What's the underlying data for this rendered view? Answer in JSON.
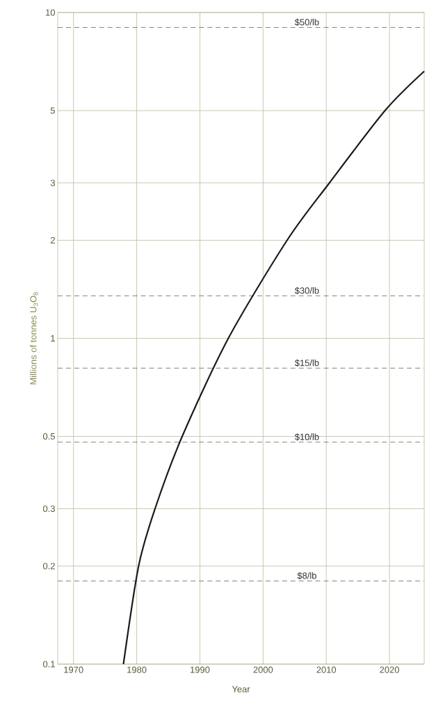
{
  "chart_data": {
    "type": "line",
    "xlabel": "Year",
    "ylabel": "Millions of tonnes U$_{3}$O$_{8}$",
    "x": [
      1977.9,
      1980.3,
      1982.9,
      1987.2,
      1994.5,
      2003.8,
      2010.5,
      2019.3,
      2025.5
    ],
    "series": [
      {
        "color": "#1a1a1a",
        "values": [
          0.1,
          0.2,
          0.3,
          0.5,
          1,
          2,
          3,
          5,
          6.6
        ]
      }
    ],
    "xlim": [
      1967.5,
      2025.5
    ],
    "ylim": [
      0.1,
      10
    ],
    "log": "y",
    "xticks": [
      1970,
      1980,
      1990,
      2000,
      2010,
      2020
    ],
    "yticks": [
      0.1,
      0.2,
      0.3,
      0.5,
      1,
      2,
      3,
      5,
      10
    ],
    "grid": true,
    "marker": "none",
    "line_style": "solid",
    "ref_lines": [
      {
        "axis": "y",
        "value": 9,
        "label": "$50/lb",
        "line_style": "dashed"
      },
      {
        "axis": "y",
        "value": 1.35,
        "label": "$30/lb",
        "line_style": "dashed"
      },
      {
        "axis": "y",
        "value": 0.81,
        "label": "$15/lb",
        "line_style": "dashed"
      },
      {
        "axis": "y",
        "value": 0.48,
        "label": "$10/lb",
        "line_style": "dashed"
      },
      {
        "axis": "y",
        "value": 0.18,
        "label": "$8/lb",
        "line_style": "dashed"
      }
    ]
  }
}
